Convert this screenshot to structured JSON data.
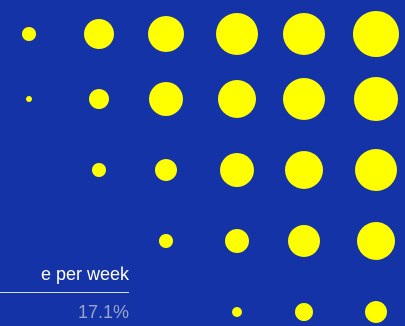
{
  "colors": {
    "background": "#1433a6",
    "dot": "#ffff00",
    "label_text": "#ffffff",
    "value_text": "#9aa3c8",
    "rule": "#d8dce8"
  },
  "caption": {
    "label": "e per week",
    "value": "17.1%"
  },
  "dot_matrix": {
    "rows": [
      {
        "dots": [
          {
            "d": 14
          },
          {
            "d": 30
          },
          {
            "d": 36
          },
          {
            "d": 42
          },
          {
            "d": 42
          },
          {
            "d": 46
          }
        ]
      },
      {
        "dots": [
          {
            "d": 6
          },
          {
            "d": 20
          },
          {
            "d": 34
          },
          {
            "d": 38
          },
          {
            "d": 42
          },
          {
            "d": 44
          }
        ]
      },
      {
        "dots": [
          null,
          {
            "d": 14
          },
          {
            "d": 22
          },
          {
            "d": 34
          },
          {
            "d": 38
          },
          {
            "d": 42
          }
        ]
      },
      {
        "dots": [
          null,
          null,
          {
            "d": 14
          },
          {
            "d": 24
          },
          {
            "d": 32
          },
          {
            "d": 38
          }
        ]
      },
      {
        "dots": [
          null,
          null,
          null,
          {
            "d": 10
          },
          {
            "d": 18
          },
          {
            "d": 22
          }
        ]
      }
    ]
  }
}
